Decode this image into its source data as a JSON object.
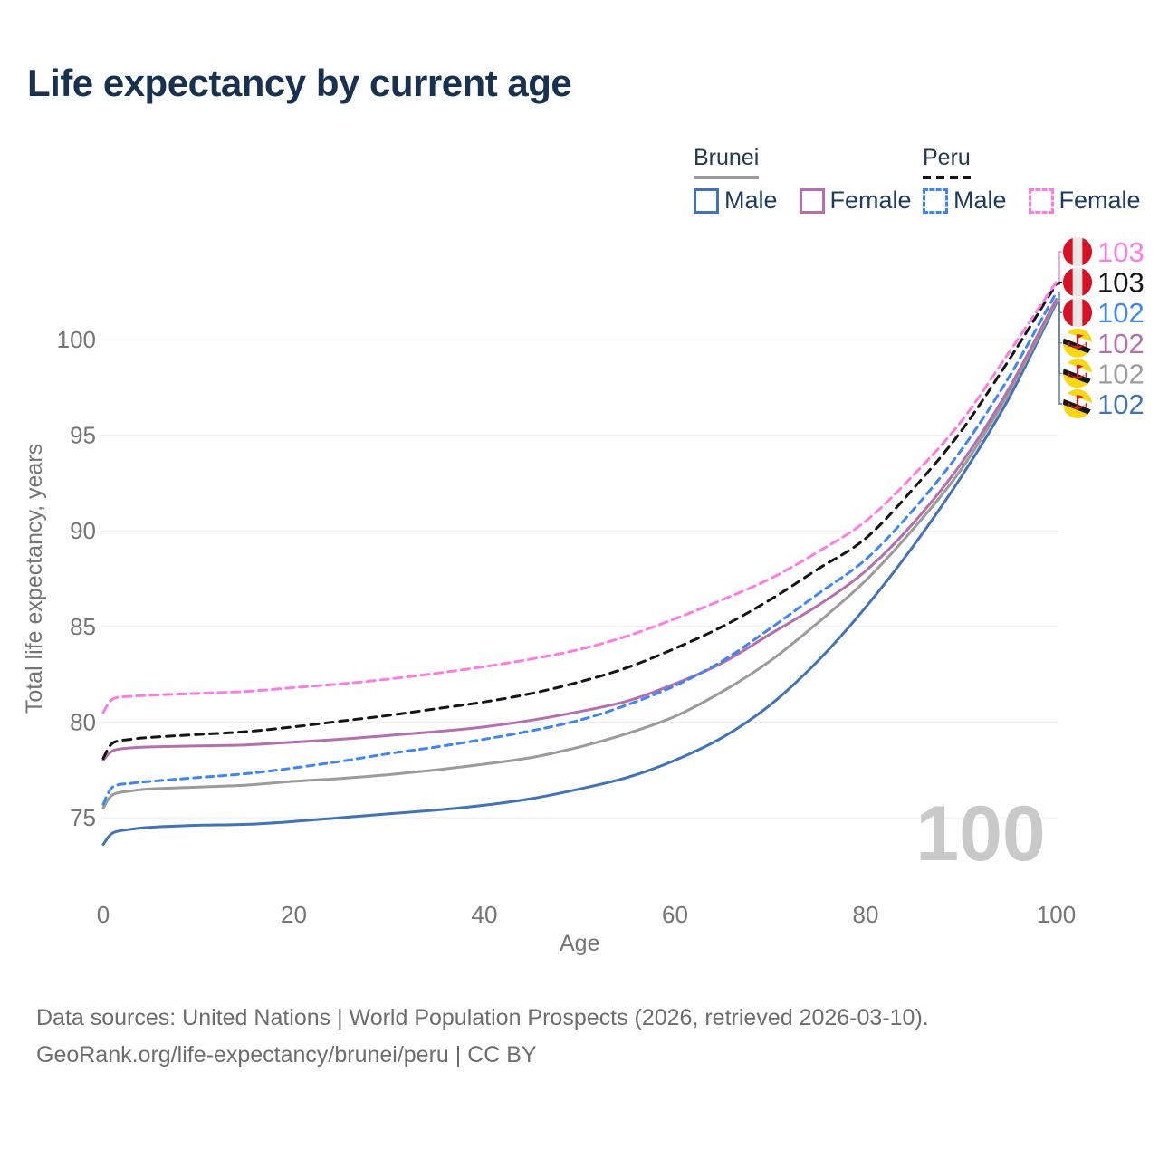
{
  "page": {
    "title": "Life expectancy by current age"
  },
  "legend": {
    "groups": [
      {
        "id": "brunei",
        "label": "Brunei",
        "line_style": "solid",
        "underline_series": "brunei-all",
        "items": [
          {
            "series": "brunei-male",
            "label": "Male"
          },
          {
            "series": "brunei-female",
            "label": "Female"
          }
        ]
      },
      {
        "id": "peru",
        "label": "Peru",
        "line_style": "dashed",
        "underline_series": "peru-all",
        "items": [
          {
            "series": "peru-male",
            "label": "Male"
          },
          {
            "series": "peru-female",
            "label": "Female"
          }
        ]
      }
    ]
  },
  "chart_data": {
    "type": "line",
    "title": "Life expectancy by current age",
    "xlabel": "Age",
    "ylabel": "Total life expectancy, years",
    "x_ticks": [
      0,
      20,
      40,
      60,
      80,
      100
    ],
    "y_ticks": [
      75,
      80,
      85,
      90,
      95,
      100
    ],
    "xlim": [
      0,
      100
    ],
    "ylim": [
      73,
      104.5
    ],
    "grid": "horizontal-only",
    "legend_position": "top-right",
    "hover_age_watermark": "100",
    "series": [
      {
        "id": "brunei-male",
        "name": "Brunei Male",
        "country": "Brunei",
        "sex": "male",
        "color": "#4273b5",
        "dash": null,
        "end_label": "102",
        "flag": "brunei-flag",
        "points": [
          [
            0,
            73.6
          ],
          [
            1,
            74.2
          ],
          [
            3,
            74.4
          ],
          [
            5,
            74.5
          ],
          [
            10,
            74.6
          ],
          [
            15,
            74.65
          ],
          [
            20,
            74.8
          ],
          [
            25,
            75.0
          ],
          [
            30,
            75.2
          ],
          [
            35,
            75.4
          ],
          [
            40,
            75.65
          ],
          [
            45,
            76.0
          ],
          [
            50,
            76.5
          ],
          [
            55,
            77.1
          ],
          [
            60,
            78.0
          ],
          [
            65,
            79.2
          ],
          [
            70,
            80.9
          ],
          [
            75,
            83.2
          ],
          [
            80,
            86.0
          ],
          [
            85,
            89.2
          ],
          [
            90,
            92.8
          ],
          [
            95,
            96.9
          ],
          [
            100,
            101.9
          ]
        ]
      },
      {
        "id": "brunei-all",
        "name": "Brunei Both sexes",
        "country": "Brunei",
        "sex": "all",
        "color": "#9b9b9b",
        "dash": null,
        "end_label": "102",
        "flag": "brunei-flag",
        "points": [
          [
            0,
            75.5
          ],
          [
            1,
            76.2
          ],
          [
            3,
            76.4
          ],
          [
            5,
            76.5
          ],
          [
            10,
            76.6
          ],
          [
            15,
            76.7
          ],
          [
            20,
            76.9
          ],
          [
            25,
            77.05
          ],
          [
            30,
            77.25
          ],
          [
            35,
            77.5
          ],
          [
            40,
            77.8
          ],
          [
            45,
            78.15
          ],
          [
            50,
            78.7
          ],
          [
            55,
            79.4
          ],
          [
            60,
            80.3
          ],
          [
            65,
            81.6
          ],
          [
            70,
            83.2
          ],
          [
            75,
            85.2
          ],
          [
            80,
            87.4
          ],
          [
            85,
            90.1
          ],
          [
            90,
            93.2
          ],
          [
            95,
            97.2
          ],
          [
            100,
            102.0
          ]
        ]
      },
      {
        "id": "brunei-female",
        "name": "Brunei Female",
        "country": "Brunei",
        "sex": "female",
        "color": "#b46fae",
        "dash": null,
        "end_label": "102",
        "flag": "brunei-flag",
        "points": [
          [
            0,
            78.0
          ],
          [
            1,
            78.5
          ],
          [
            3,
            78.65
          ],
          [
            5,
            78.7
          ],
          [
            10,
            78.75
          ],
          [
            15,
            78.8
          ],
          [
            20,
            78.95
          ],
          [
            25,
            79.1
          ],
          [
            30,
            79.3
          ],
          [
            35,
            79.5
          ],
          [
            40,
            79.75
          ],
          [
            45,
            80.1
          ],
          [
            50,
            80.55
          ],
          [
            55,
            81.1
          ],
          [
            60,
            82.0
          ],
          [
            65,
            83.1
          ],
          [
            70,
            84.6
          ],
          [
            75,
            86.1
          ],
          [
            80,
            87.9
          ],
          [
            85,
            90.4
          ],
          [
            90,
            93.5
          ],
          [
            95,
            97.4
          ],
          [
            100,
            102.1
          ]
        ]
      },
      {
        "id": "peru-male",
        "name": "Peru Male",
        "country": "Peru",
        "sex": "male",
        "color": "#3f86f0",
        "dash": "8 6",
        "end_label": "102",
        "flag": "peru-flag",
        "points": [
          [
            0,
            75.7
          ],
          [
            1,
            76.6
          ],
          [
            3,
            76.8
          ],
          [
            5,
            76.9
          ],
          [
            10,
            77.1
          ],
          [
            15,
            77.3
          ],
          [
            20,
            77.6
          ],
          [
            25,
            77.95
          ],
          [
            30,
            78.35
          ],
          [
            35,
            78.7
          ],
          [
            40,
            79.1
          ],
          [
            45,
            79.55
          ],
          [
            50,
            80.1
          ],
          [
            55,
            80.9
          ],
          [
            60,
            81.9
          ],
          [
            65,
            83.2
          ],
          [
            70,
            84.9
          ],
          [
            75,
            86.7
          ],
          [
            80,
            88.5
          ],
          [
            85,
            91.1
          ],
          [
            90,
            94.2
          ],
          [
            95,
            98.0
          ],
          [
            100,
            102.45
          ]
        ]
      },
      {
        "id": "peru-all",
        "name": "Peru Both sexes",
        "country": "Peru",
        "sex": "all",
        "color": "#151515",
        "dash": "9 7",
        "end_label": "103",
        "flag": "peru-flag",
        "points": [
          [
            0,
            78.1
          ],
          [
            1,
            78.9
          ],
          [
            3,
            79.1
          ],
          [
            5,
            79.2
          ],
          [
            10,
            79.35
          ],
          [
            15,
            79.5
          ],
          [
            20,
            79.75
          ],
          [
            25,
            80.05
          ],
          [
            30,
            80.35
          ],
          [
            35,
            80.7
          ],
          [
            40,
            81.05
          ],
          [
            45,
            81.5
          ],
          [
            50,
            82.1
          ],
          [
            55,
            82.85
          ],
          [
            60,
            83.85
          ],
          [
            65,
            85.0
          ],
          [
            70,
            86.4
          ],
          [
            75,
            88.0
          ],
          [
            80,
            89.6
          ],
          [
            85,
            92.2
          ],
          [
            90,
            95.2
          ],
          [
            95,
            98.9
          ],
          [
            100,
            102.9
          ]
        ]
      },
      {
        "id": "peru-female",
        "name": "Peru Female",
        "country": "Peru",
        "sex": "female",
        "color": "#fb7de2",
        "dash": "9 6",
        "end_label": "103",
        "flag": "peru-flag",
        "points": [
          [
            0,
            80.5
          ],
          [
            1,
            81.2
          ],
          [
            3,
            81.35
          ],
          [
            5,
            81.4
          ],
          [
            10,
            81.5
          ],
          [
            15,
            81.6
          ],
          [
            20,
            81.8
          ],
          [
            25,
            82.0
          ],
          [
            30,
            82.25
          ],
          [
            35,
            82.55
          ],
          [
            40,
            82.9
          ],
          [
            45,
            83.3
          ],
          [
            50,
            83.8
          ],
          [
            55,
            84.5
          ],
          [
            60,
            85.4
          ],
          [
            65,
            86.4
          ],
          [
            70,
            87.5
          ],
          [
            75,
            88.9
          ],
          [
            80,
            90.5
          ],
          [
            85,
            92.9
          ],
          [
            90,
            95.7
          ],
          [
            95,
            99.3
          ],
          [
            100,
            103.0
          ]
        ]
      }
    ]
  },
  "footer": {
    "line1": "Data sources: United Nations | World Population Prospects (2026, retrieved 2026-03-10).",
    "line2": "GeoRank.org/life-expectancy/brunei/peru | CC BY"
  }
}
